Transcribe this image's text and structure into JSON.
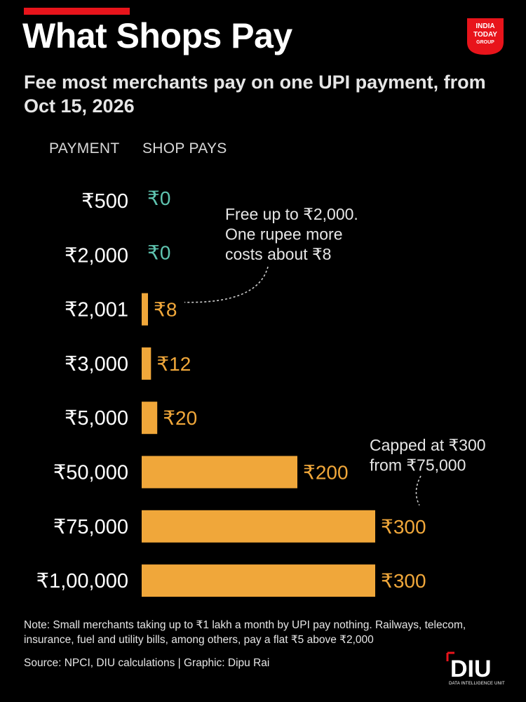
{
  "header": {
    "title": "What Shops Pay",
    "subtitle": "Fee most merchants pay on one UPI payment, from Oct 15, 2026",
    "accent_color": "#e8141b"
  },
  "logo": {
    "lines": [
      "INDIA",
      "TODAY",
      "GROUP"
    ],
    "color": "#e8141b"
  },
  "column_headers": {
    "payment": "PAYMENT",
    "shop_pays": "SHOP PAYS"
  },
  "chart_data": {
    "type": "bar",
    "orientation": "horizontal",
    "categories": [
      "₹500",
      "₹2,000",
      "₹2,001",
      "₹3,000",
      "₹5,000",
      "₹50,000",
      "₹75,000",
      "₹1,00,000"
    ],
    "values": [
      0,
      0,
      8,
      12,
      20,
      200,
      300,
      300
    ],
    "data_labels": [
      "₹0",
      "₹0",
      "₹8",
      "₹12",
      "₹20",
      "₹200",
      "₹300",
      "₹300"
    ],
    "xlim": [
      0,
      300
    ],
    "grid": false,
    "bar_color": "#f0a73a",
    "zero_label_color": "#5fc4b0",
    "annotations": [
      {
        "text": [
          "Free up to ₹2,000.",
          "One rupee more",
          "costs about ₹8"
        ],
        "points_to": "₹2,001"
      },
      {
        "text": [
          "Capped at ₹300",
          "from ₹75,000"
        ],
        "points_to": "₹75,000"
      }
    ]
  },
  "footer": {
    "note": "Note: Small merchants taking up to ₹1 lakh a month by UPI pay nothing. Railways, telecom, insurance, fuel and utility bills, among others, pay a flat ₹5 above ₹2,000",
    "source": "Source: NPCI, DIU calculations | Graphic: Dipu Rai",
    "diu_logo": "DIU",
    "diu_caption": "DATA INTELLIGENCE UNIT",
    "diu_accent": "#e8141b"
  }
}
